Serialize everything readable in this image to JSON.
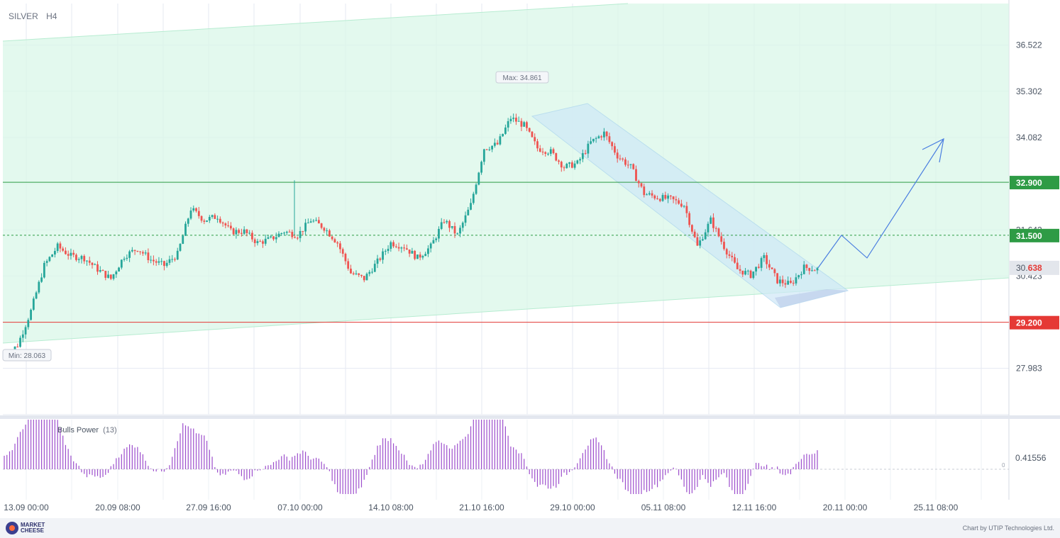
{
  "header": {
    "symbol": "SILVER",
    "timeframe": "H4"
  },
  "chart_data": {
    "type": "candlestick",
    "y_ticks": [
      "36.522",
      "35.302",
      "34.082",
      "31.642",
      "30.423",
      "27.983"
    ],
    "x_ticks": [
      "13.09 00:00",
      "20.09 08:00",
      "27.09 16:00",
      "07.10 00:00",
      "14.10 08:00",
      "21.10 16:00",
      "29.10 00:00",
      "05.11 08:00",
      "12.11 16:00",
      "20.11 00:00",
      "25.11 08:00"
    ],
    "ylim": [
      26.76,
      37.62
    ],
    "levels": [
      {
        "label": "32.900",
        "value": 32.9,
        "color": "#2e9b45",
        "style": "solid"
      },
      {
        "label": "31.500",
        "value": 31.5,
        "color": "#2e9b45",
        "style": "dashed"
      },
      {
        "label": "29.200",
        "value": 29.2,
        "color": "#e53935",
        "style": "solid"
      }
    ],
    "current_price": {
      "prefix": "30.",
      "suffix": "638",
      "value": 30.638
    },
    "max_label": "Max: 34.861",
    "min_label": "Min: 28.063",
    "forecast_path": [
      [
        30.638
      ],
      [
        31.5
      ],
      [
        30.9
      ],
      [
        33.65
      ]
    ]
  },
  "indicator": {
    "name": "Bulls Power",
    "param": "(13)",
    "tick": "0.41556",
    "zero": "0"
  },
  "footer": {
    "logo_text": "MARKET CHEESE",
    "credit": "Chart by UTIP Technologies Ltd."
  },
  "colors": {
    "bull": "#26a69a",
    "bear": "#ef5350",
    "channel_fill": "#d9f7e8",
    "bear_channel": "#cfe8f7",
    "indicator": "#9c4dcc",
    "forecast": "#4a7ee0"
  }
}
